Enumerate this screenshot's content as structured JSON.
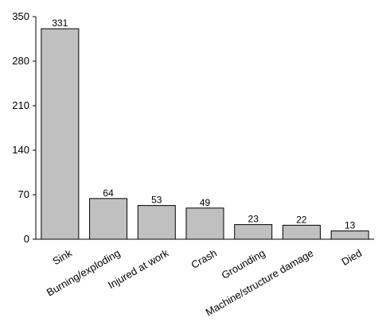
{
  "chart_data": {
    "type": "bar",
    "categories": [
      "Sink",
      "Burning/exploding",
      "Injured at work",
      "Crash",
      "Grounding",
      "Machine/structure damage",
      "Died"
    ],
    "values": [
      331,
      64,
      53,
      49,
      23,
      22,
      13
    ],
    "ylim": [
      0,
      350
    ],
    "yticks": [
      0,
      70,
      140,
      210,
      280,
      350
    ],
    "grid": false,
    "legend": "none",
    "bar_color": "#c0c0c0",
    "bar_edge_color": "#000000"
  }
}
